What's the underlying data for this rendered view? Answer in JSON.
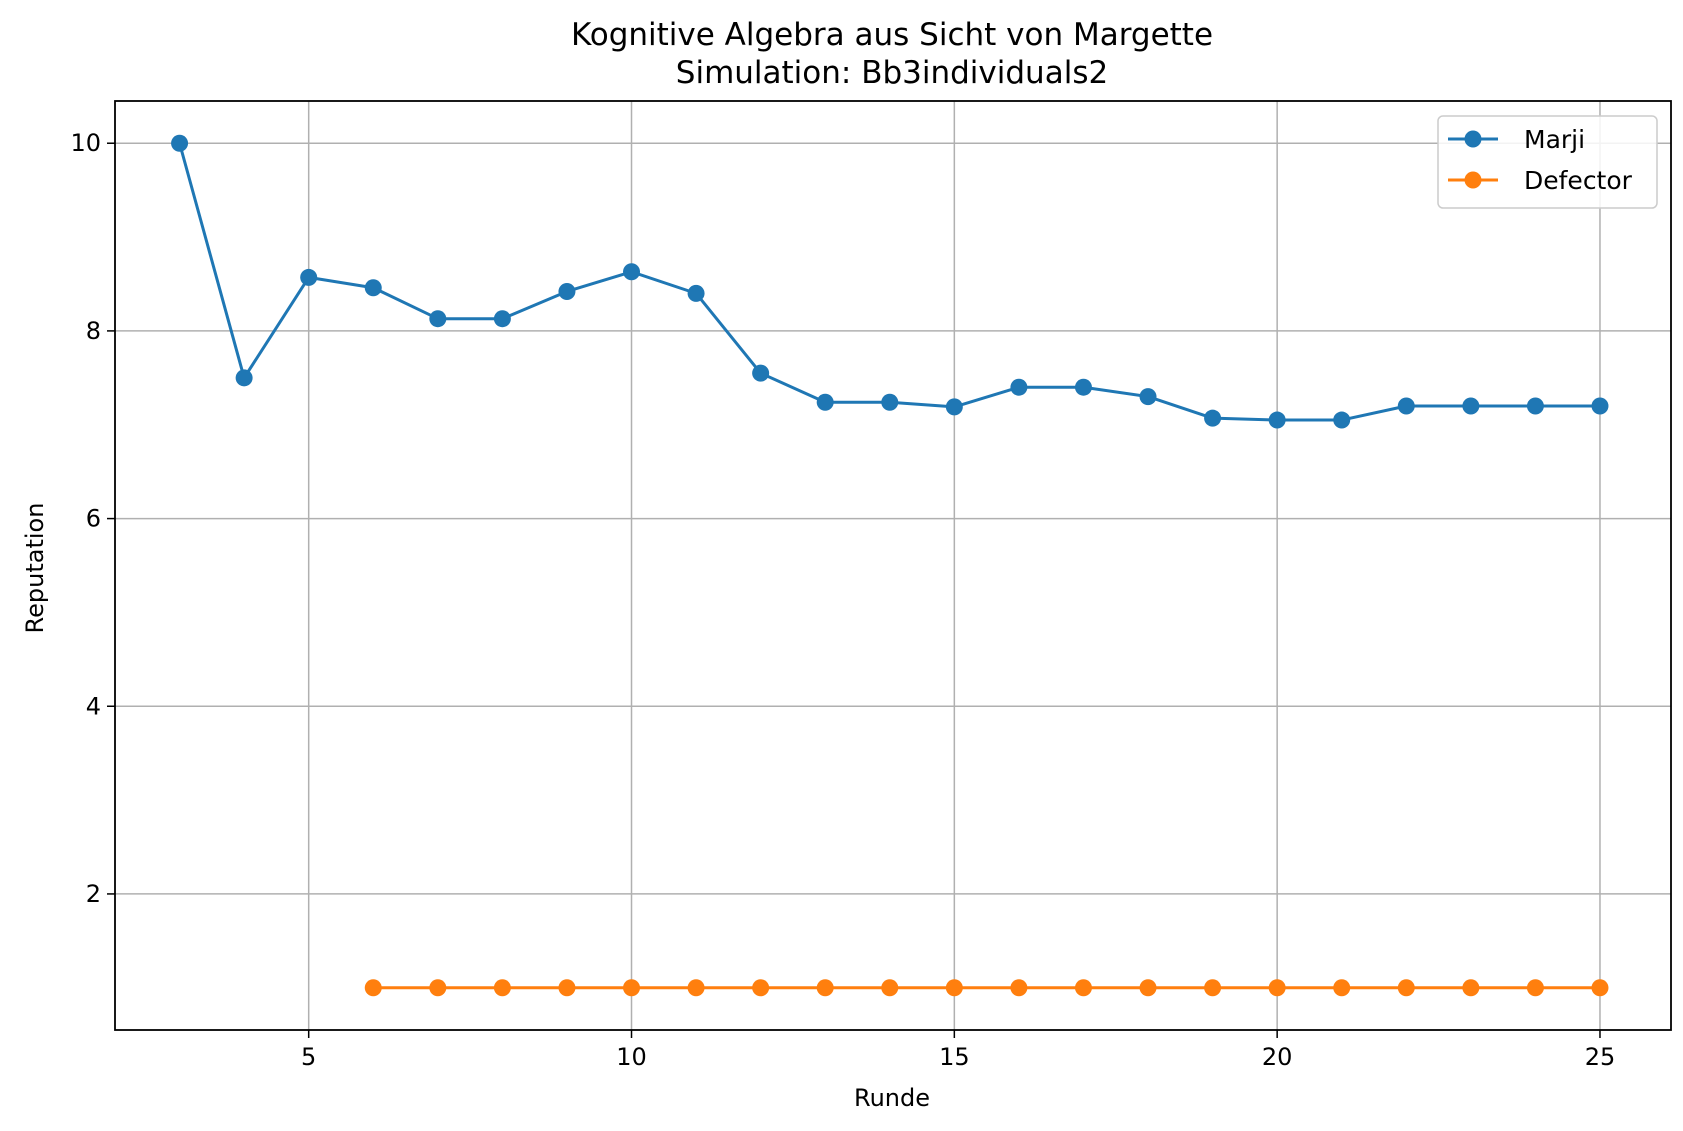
{
  "chart_data": {
    "type": "line",
    "title": "Kognitive Algebra aus Sicht von Margette",
    "subtitle": "Simulation: Bb3individuals2",
    "xlabel": "Runde",
    "ylabel": "Reputation",
    "xlim": [
      2,
      26.1
    ],
    "ylim": [
      0.55,
      10.45
    ],
    "xticks": [
      5,
      10,
      15,
      20,
      25
    ],
    "yticks": [
      2,
      4,
      6,
      8,
      10
    ],
    "grid": true,
    "legend_position": "top-right",
    "series": [
      {
        "name": "Marji",
        "color": "#1f77b4",
        "x": [
          3,
          4,
          5,
          6,
          7,
          8,
          9,
          10,
          11,
          12,
          13,
          14,
          15,
          16,
          17,
          18,
          19,
          20,
          21,
          22,
          23,
          24,
          25
        ],
        "y": [
          10.0,
          7.5,
          8.57,
          8.46,
          8.13,
          8.13,
          8.42,
          8.63,
          8.4,
          7.55,
          7.24,
          7.24,
          7.19,
          7.4,
          7.4,
          7.3,
          7.07,
          7.05,
          7.05,
          7.2,
          7.2,
          7.2,
          7.2
        ]
      },
      {
        "name": "Defector",
        "color": "#ff7f0e",
        "x": [
          6,
          7,
          8,
          9,
          10,
          11,
          12,
          13,
          14,
          15,
          16,
          17,
          18,
          19,
          20,
          21,
          22,
          23,
          24,
          25
        ],
        "y": [
          1,
          1,
          1,
          1,
          1,
          1,
          1,
          1,
          1,
          1,
          1,
          1,
          1,
          1,
          1,
          1,
          1,
          1,
          1,
          1
        ]
      }
    ]
  }
}
